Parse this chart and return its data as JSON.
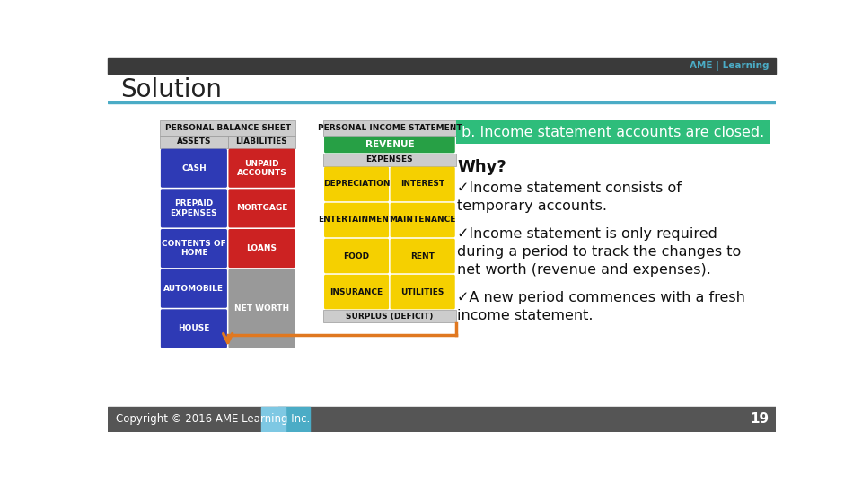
{
  "title": "Solution",
  "title_fontsize": 20,
  "title_color": "#222222",
  "bg_color": "#ffffff",
  "header_bar_color": "#4bacc6",
  "top_bar_color": "#3a3a3a",
  "highlight_box": {
    "text": "b. Income statement accounts are closed.",
    "bg_color": "#2ebd7b",
    "text_color": "#ffffff",
    "fontsize": 11.5
  },
  "why_label": "Why?",
  "why_fontsize": 13,
  "bullet_points": [
    [
      "✓Income statement consists of",
      "temporary accounts."
    ],
    [
      "✓Income statement is only required",
      "during a period to track the changes to",
      "net worth (revenue and expenses)."
    ],
    [
      "✓A new period commences with a fresh",
      "income statement."
    ]
  ],
  "bullet_fontsize": 11.5,
  "copyright": "Copyright © 2016 AME Learning Inc.",
  "copyright_fontsize": 8.5,
  "page_number": "19",
  "balance_sheet": {
    "header": "PERSONAL BALANCE SHEET",
    "assets_header": "ASSETS",
    "liabilities_header": "LIABILITIES",
    "assets": [
      "CASH",
      "PREPAID\nEXPENSES",
      "CONTENTS OF\nHOME",
      "AUTOMOBILE",
      "HOUSE"
    ],
    "liabilities": [
      "UNPAID\nACCOUNTS",
      "MORTGAGE",
      "LOANS"
    ],
    "asset_color": "#2e3ab5",
    "liability_color": "#cc2222",
    "networth_color": "#999999",
    "header_bg": "#cccccc",
    "fontsize": 6.5
  },
  "income_statement": {
    "header": "PERSONAL INCOME STATEMENT",
    "revenue_label": "REVENUE",
    "revenue_color": "#27a045",
    "expenses_label": "EXPENSES",
    "expenses_header_bg": "#cccccc",
    "expense_items": [
      [
        "DEPRECIATION",
        "INTEREST"
      ],
      [
        "ENTERTAINMENT",
        "MAINTENANCE"
      ],
      [
        "FOOD",
        "RENT"
      ],
      [
        "INSURANCE",
        "UTILITIES"
      ]
    ],
    "expense_color": "#f5d000",
    "surplus_label": "SURPLUS (DEFICIT)",
    "surplus_bg": "#cccccc",
    "header_bg": "#cccccc",
    "fontsize": 6.5
  },
  "arrow_color": "#e07820"
}
